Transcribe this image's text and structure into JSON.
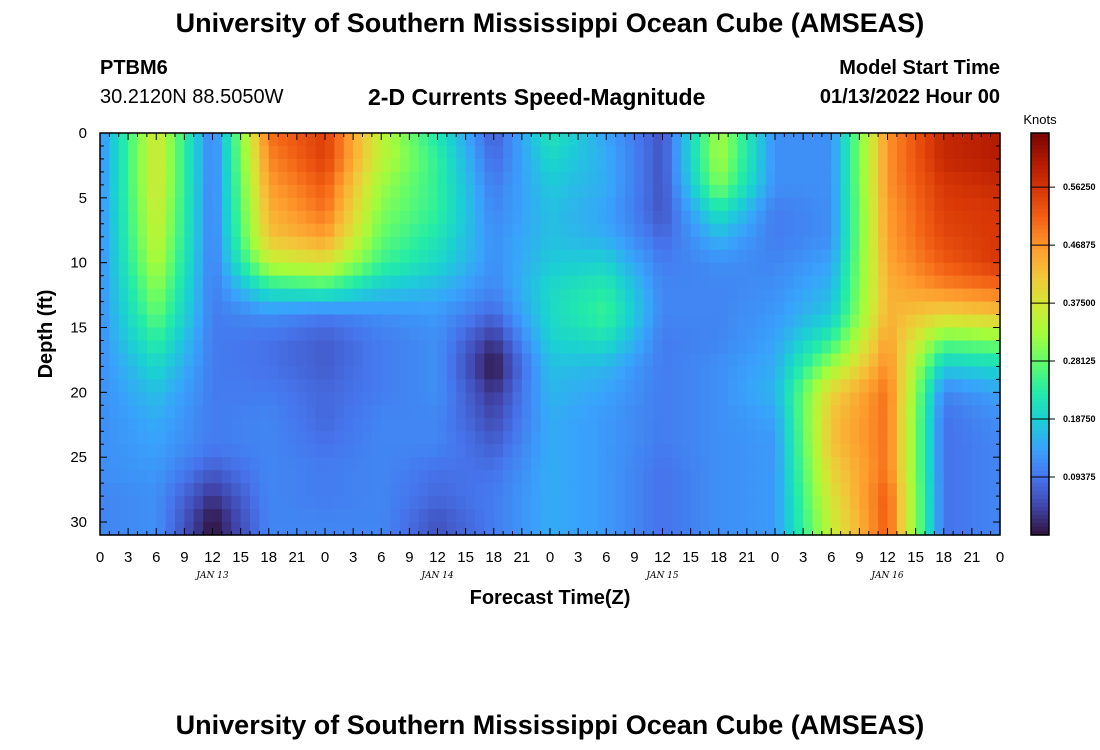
{
  "header": {
    "title": "University of Southern Mississippi Ocean Cube (AMSEAS)",
    "station": "PTBM6",
    "coordinates": "30.2120N  88.5050W",
    "plot_title": "2-D Currents Speed-Magnitude",
    "model_start_label": "Model Start Time",
    "model_start_value": "01/13/2022 Hour 00"
  },
  "footer": {
    "title": "University of Southern Mississippi Ocean Cube (AMSEAS)"
  },
  "chart_data": {
    "type": "heatmap",
    "xlabel": "Forecast Time(Z)",
    "ylabel": "Depth (ft)",
    "xlim": [
      0,
      96
    ],
    "ylim": [
      31,
      0
    ],
    "x_ticks": [
      0,
      3,
      6,
      9,
      12,
      15,
      18,
      21,
      24,
      27,
      30,
      33,
      36,
      39,
      42,
      45,
      48,
      51,
      54,
      57,
      60,
      63,
      66,
      69,
      72,
      75,
      78,
      81,
      84,
      87,
      90,
      93,
      96
    ],
    "x_tick_labels": [
      "0",
      "3",
      "6",
      "9",
      "12",
      "15",
      "18",
      "21",
      "0",
      "3",
      "6",
      "9",
      "12",
      "15",
      "18",
      "21",
      "0",
      "3",
      "6",
      "9",
      "12",
      "15",
      "18",
      "21",
      "0",
      "3",
      "6",
      "9",
      "12",
      "15",
      "18",
      "21",
      "0"
    ],
    "day_labels": [
      {
        "x": 12,
        "label": "JAN 13"
      },
      {
        "x": 36,
        "label": "JAN 14"
      },
      {
        "x": 60,
        "label": "JAN 15"
      },
      {
        "x": 84,
        "label": "JAN 16"
      }
    ],
    "y_ticks": [
      0,
      5,
      10,
      15,
      20,
      25,
      30
    ],
    "y_tick_labels": [
      "0",
      "5",
      "10",
      "15",
      "20",
      "25",
      "30"
    ],
    "colorbar": {
      "units": "Knots",
      "range": [
        0,
        0.65
      ],
      "ticks": [
        0.09375,
        0.1875,
        0.28125,
        0.375,
        0.46875,
        0.5625
      ],
      "tick_labels": [
        "0.09375",
        "0.18750",
        "0.28125",
        "0.37500",
        "0.46875",
        "0.56250"
      ],
      "colors": [
        "#30123b",
        "#4145ab",
        "#4675ed",
        "#39a2fc",
        "#1bcfd4",
        "#24eca6",
        "#61fc6c",
        "#a4fc3b",
        "#d1e834",
        "#f3c63a",
        "#fe9b2d",
        "#f36315",
        "#d93806",
        "#b11901",
        "#7a0402"
      ]
    },
    "depth_levels": [
      0,
      2,
      4,
      6,
      8,
      10,
      12,
      14,
      16,
      18,
      20,
      22,
      24,
      26,
      28,
      30,
      31
    ],
    "time_points": [
      0,
      6,
      12,
      18,
      24,
      30,
      36,
      42,
      48,
      54,
      60,
      66,
      72,
      78,
      84,
      90,
      96
    ],
    "speed": [
      [
        0.12,
        0.38,
        0.1,
        0.5,
        0.55,
        0.35,
        0.22,
        0.07,
        0.22,
        0.14,
        0.06,
        0.33,
        0.12,
        0.12,
        0.47,
        0.58,
        0.6
      ],
      [
        0.12,
        0.38,
        0.1,
        0.48,
        0.55,
        0.35,
        0.24,
        0.08,
        0.2,
        0.15,
        0.06,
        0.33,
        0.12,
        0.12,
        0.47,
        0.58,
        0.6
      ],
      [
        0.12,
        0.38,
        0.1,
        0.46,
        0.52,
        0.32,
        0.24,
        0.1,
        0.18,
        0.15,
        0.06,
        0.3,
        0.12,
        0.12,
        0.47,
        0.56,
        0.58
      ],
      [
        0.12,
        0.37,
        0.1,
        0.44,
        0.5,
        0.3,
        0.24,
        0.11,
        0.17,
        0.14,
        0.06,
        0.22,
        0.1,
        0.12,
        0.46,
        0.55,
        0.56
      ],
      [
        0.12,
        0.36,
        0.1,
        0.42,
        0.46,
        0.28,
        0.22,
        0.12,
        0.17,
        0.15,
        0.08,
        0.16,
        0.1,
        0.12,
        0.46,
        0.54,
        0.56
      ],
      [
        0.12,
        0.34,
        0.1,
        0.35,
        0.38,
        0.25,
        0.2,
        0.12,
        0.18,
        0.19,
        0.1,
        0.12,
        0.11,
        0.14,
        0.45,
        0.52,
        0.56
      ],
      [
        0.12,
        0.31,
        0.1,
        0.22,
        0.24,
        0.18,
        0.16,
        0.11,
        0.2,
        0.23,
        0.11,
        0.11,
        0.12,
        0.16,
        0.44,
        0.48,
        0.5
      ],
      [
        0.12,
        0.28,
        0.1,
        0.12,
        0.1,
        0.12,
        0.13,
        0.08,
        0.2,
        0.25,
        0.11,
        0.11,
        0.13,
        0.18,
        0.44,
        0.4,
        0.42
      ],
      [
        0.12,
        0.24,
        0.1,
        0.09,
        0.07,
        0.1,
        0.12,
        0.03,
        0.19,
        0.21,
        0.1,
        0.11,
        0.14,
        0.24,
        0.46,
        0.28,
        0.3
      ],
      [
        0.12,
        0.2,
        0.1,
        0.09,
        0.07,
        0.1,
        0.12,
        0.0,
        0.17,
        0.16,
        0.1,
        0.12,
        0.15,
        0.32,
        0.48,
        0.18,
        0.2
      ],
      [
        0.12,
        0.17,
        0.1,
        0.1,
        0.08,
        0.1,
        0.12,
        0.03,
        0.16,
        0.14,
        0.1,
        0.12,
        0.16,
        0.4,
        0.5,
        0.11,
        0.14
      ],
      [
        0.12,
        0.15,
        0.1,
        0.11,
        0.08,
        0.11,
        0.11,
        0.05,
        0.15,
        0.13,
        0.1,
        0.12,
        0.14,
        0.42,
        0.5,
        0.09,
        0.12
      ],
      [
        0.12,
        0.14,
        0.1,
        0.11,
        0.09,
        0.11,
        0.11,
        0.07,
        0.15,
        0.13,
        0.1,
        0.12,
        0.13,
        0.42,
        0.5,
        0.09,
        0.11
      ],
      [
        0.12,
        0.13,
        0.07,
        0.11,
        0.1,
        0.11,
        0.09,
        0.09,
        0.15,
        0.13,
        0.09,
        0.12,
        0.13,
        0.4,
        0.5,
        0.09,
        0.11
      ],
      [
        0.11,
        0.12,
        0.03,
        0.11,
        0.1,
        0.11,
        0.08,
        0.1,
        0.15,
        0.13,
        0.09,
        0.12,
        0.13,
        0.38,
        0.52,
        0.09,
        0.11
      ],
      [
        0.11,
        0.12,
        0.0,
        0.11,
        0.11,
        0.11,
        0.06,
        0.1,
        0.15,
        0.13,
        0.09,
        0.12,
        0.13,
        0.36,
        0.52,
        0.09,
        0.11
      ],
      [
        0.11,
        0.12,
        0.0,
        0.11,
        0.11,
        0.11,
        0.06,
        0.1,
        0.15,
        0.13,
        0.09,
        0.12,
        0.13,
        0.36,
        0.52,
        0.09,
        0.11
      ]
    ]
  }
}
